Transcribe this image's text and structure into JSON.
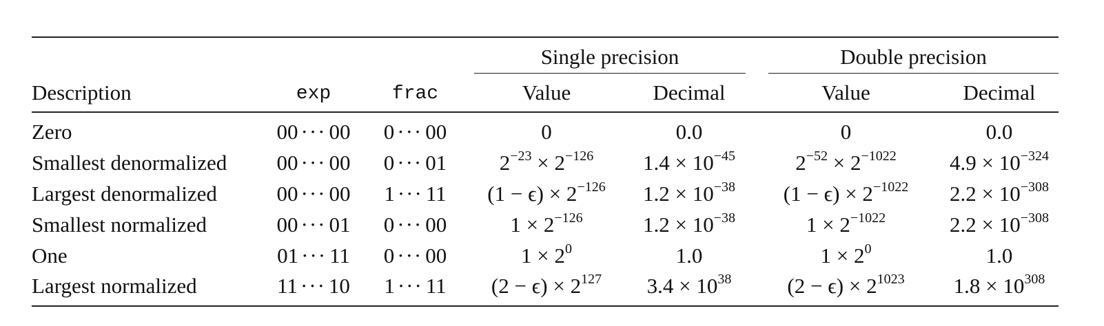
{
  "table": {
    "group_headers": {
      "single": "Single precision",
      "double": "Double precision"
    },
    "column_headers": {
      "description": "Description",
      "exp": "exp",
      "frac": "frac",
      "single_value": "Value",
      "single_decimal": "Decimal",
      "double_value": "Value",
      "double_decimal": "Decimal"
    },
    "rows": [
      {
        "description": "Zero",
        "exp": {
          "head": "00",
          "dots": "···",
          "tail": "00"
        },
        "frac": {
          "head": "0",
          "dots": "···",
          "tail": "00"
        },
        "single_value": {
          "text": "0",
          "sup": "",
          "text2": "",
          "sup2": ""
        },
        "single_decimal": {
          "text": "0.0",
          "sup": ""
        },
        "double_value": {
          "text": "0",
          "sup": "",
          "text2": "",
          "sup2": ""
        },
        "double_decimal": {
          "text": "0.0",
          "sup": ""
        }
      },
      {
        "description": "Smallest denormalized",
        "exp": {
          "head": "00",
          "dots": "···",
          "tail": "00"
        },
        "frac": {
          "head": "0",
          "dots": "···",
          "tail": "01"
        },
        "single_value": {
          "text": "2",
          "sup": "−23",
          "text2": " × 2",
          "sup2": "−126"
        },
        "single_decimal": {
          "text": "1.4 × 10",
          "sup": "−45"
        },
        "double_value": {
          "text": "2",
          "sup": "−52",
          "text2": " × 2",
          "sup2": "−1022"
        },
        "double_decimal": {
          "text": "4.9 × 10",
          "sup": "−324"
        }
      },
      {
        "description": "Largest denormalized",
        "exp": {
          "head": "00",
          "dots": "···",
          "tail": "00"
        },
        "frac": {
          "head": "1",
          "dots": "···",
          "tail": "11"
        },
        "single_value": {
          "text": "(1 − ϵ) × 2",
          "sup": "−126",
          "text2": "",
          "sup2": ""
        },
        "single_decimal": {
          "text": "1.2 × 10",
          "sup": "−38"
        },
        "double_value": {
          "text": "(1 − ϵ) × 2",
          "sup": "−1022",
          "text2": "",
          "sup2": ""
        },
        "double_decimal": {
          "text": "2.2 × 10",
          "sup": "−308"
        }
      },
      {
        "description": "Smallest normalized",
        "exp": {
          "head": "00",
          "dots": "···",
          "tail": "01"
        },
        "frac": {
          "head": "0",
          "dots": "···",
          "tail": "00"
        },
        "single_value": {
          "text": "1 × 2",
          "sup": "−126",
          "text2": "",
          "sup2": ""
        },
        "single_decimal": {
          "text": "1.2 × 10",
          "sup": "−38"
        },
        "double_value": {
          "text": "1 × 2",
          "sup": "−1022",
          "text2": "",
          "sup2": ""
        },
        "double_decimal": {
          "text": "2.2 × 10",
          "sup": "−308"
        }
      },
      {
        "description": "One",
        "exp": {
          "head": "01",
          "dots": "···",
          "tail": "11"
        },
        "frac": {
          "head": "0",
          "dots": "···",
          "tail": "00"
        },
        "single_value": {
          "text": "1 × 2",
          "sup": "0",
          "text2": "",
          "sup2": ""
        },
        "single_decimal": {
          "text": "1.0",
          "sup": ""
        },
        "double_value": {
          "text": "1 × 2",
          "sup": "0",
          "text2": "",
          "sup2": ""
        },
        "double_decimal": {
          "text": "1.0",
          "sup": ""
        }
      },
      {
        "description": "Largest normalized",
        "exp": {
          "head": "11",
          "dots": "···",
          "tail": "10"
        },
        "frac": {
          "head": "1",
          "dots": "···",
          "tail": "11"
        },
        "single_value": {
          "text": "(2 − ϵ) × 2",
          "sup": "127",
          "text2": "",
          "sup2": ""
        },
        "single_decimal": {
          "text": "3.4 × 10",
          "sup": "38"
        },
        "double_value": {
          "text": "(2 − ϵ) × 2",
          "sup": "1023",
          "text2": "",
          "sup2": ""
        },
        "double_decimal": {
          "text": "1.8 × 10",
          "sup": "308"
        }
      }
    ]
  }
}
